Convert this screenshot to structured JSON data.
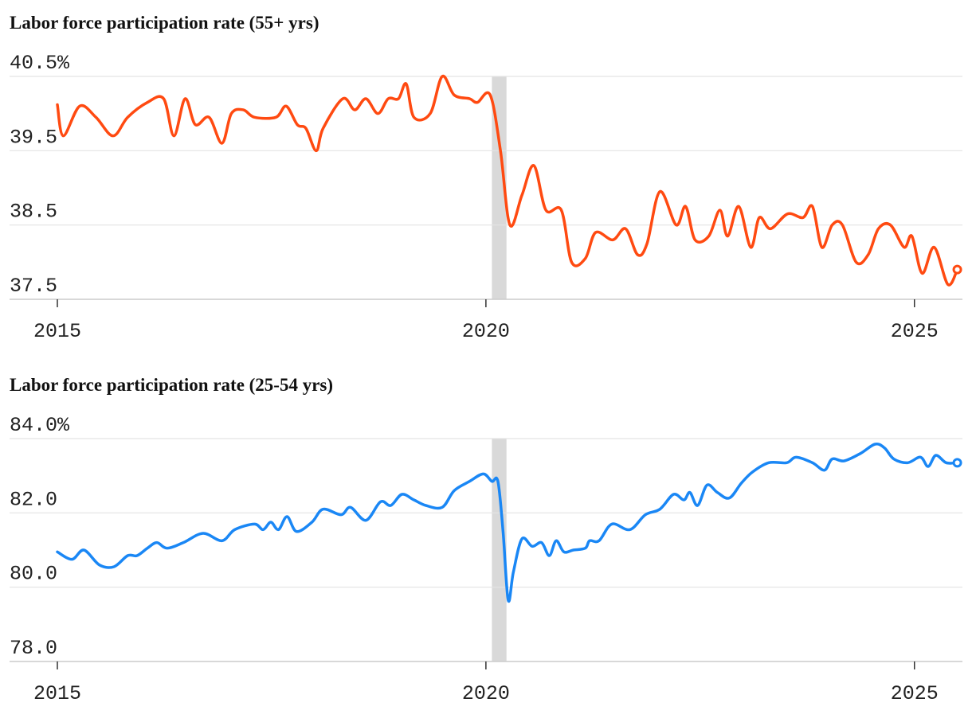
{
  "chart_data": [
    {
      "type": "line",
      "title": "Labor force participation rate (55+ yrs)",
      "color": "#ff4a11",
      "xlim": [
        2015,
        2025.56
      ],
      "xticks": [
        2015,
        2020,
        2025
      ],
      "ylim": [
        37.5,
        40.5
      ],
      "yticks": [
        37.5,
        38.5,
        39.5,
        {
          "value": 40.5,
          "label": "40.5%"
        }
      ],
      "grid": true,
      "shade": [
        2020.07,
        2020.24
      ],
      "x": [
        2015,
        2015.07,
        2015.26,
        2015.45,
        2015.65,
        2015.82,
        2016.05,
        2016.24,
        2016.36,
        2016.49,
        2016.61,
        2016.77,
        2016.92,
        2017.03,
        2017.17,
        2017.3,
        2017.55,
        2017.67,
        2017.8,
        2017.9,
        2018.02,
        2018.1,
        2018.33,
        2018.47,
        2018.6,
        2018.74,
        2018.86,
        2018.98,
        2019.07,
        2019.16,
        2019.35,
        2019.49,
        2019.63,
        2019.81,
        2019.9,
        2020.05,
        2020.17,
        2020.28,
        2020.42,
        2020.56,
        2020.7,
        2020.88,
        2021.0,
        2021.16,
        2021.28,
        2021.48,
        2021.63,
        2021.77,
        2021.88,
        2022.03,
        2022.22,
        2022.33,
        2022.44,
        2022.6,
        2022.73,
        2022.82,
        2022.95,
        2023.09,
        2023.19,
        2023.32,
        2023.52,
        2023.7,
        2023.81,
        2023.92,
        2024.04,
        2024.16,
        2024.32,
        2024.46,
        2024.58,
        2024.72,
        2024.88,
        2024.97,
        2025.09,
        2025.23,
        2025.39,
        2025.5
      ],
      "values": [
        40.12,
        39.7,
        40.1,
        39.95,
        39.7,
        39.95,
        40.15,
        40.2,
        39.7,
        40.2,
        39.85,
        39.95,
        39.6,
        40.0,
        40.05,
        39.95,
        39.95,
        40.1,
        39.85,
        39.8,
        39.5,
        39.8,
        40.2,
        40.05,
        40.2,
        40.0,
        40.2,
        40.2,
        40.4,
        39.95,
        40.0,
        40.5,
        40.25,
        40.2,
        40.15,
        40.25,
        39.5,
        38.5,
        38.9,
        39.3,
        38.7,
        38.7,
        38.0,
        38.05,
        38.4,
        38.3,
        38.45,
        38.1,
        38.25,
        38.95,
        38.5,
        38.75,
        38.3,
        38.35,
        38.7,
        38.35,
        38.75,
        38.2,
        38.6,
        38.45,
        38.65,
        38.6,
        38.75,
        38.2,
        38.5,
        38.5,
        38.0,
        38.1,
        38.45,
        38.5,
        38.2,
        38.35,
        37.85,
        38.2,
        37.7,
        37.9
      ]
    },
    {
      "type": "line",
      "title": "Labor force participation rate (25-54 yrs)",
      "color": "#1a87f5",
      "xlim": [
        2015,
        2025.56
      ],
      "xticks": [
        2015,
        2020,
        2025
      ],
      "ylim": [
        78,
        84
      ],
      "yticks": [
        {
          "value": 78,
          "label": "78.0"
        },
        {
          "value": 80,
          "label": "80.0"
        },
        {
          "value": 82,
          "label": "82.0"
        },
        {
          "value": 84,
          "label": "84.0%"
        }
      ],
      "grid": true,
      "shade": [
        2020.07,
        2020.24
      ],
      "x": [
        2015,
        2015.17,
        2015.31,
        2015.49,
        2015.66,
        2015.82,
        2015.93,
        2016.05,
        2016.16,
        2016.28,
        2016.47,
        2016.7,
        2016.92,
        2017.07,
        2017.3,
        2017.4,
        2017.49,
        2017.58,
        2017.68,
        2017.79,
        2017.97,
        2018.1,
        2018.31,
        2018.42,
        2018.6,
        2018.77,
        2018.89,
        2019.02,
        2019.16,
        2019.3,
        2019.49,
        2019.63,
        2019.81,
        2019.97,
        2020.07,
        2020.14,
        2020.2,
        2020.26,
        2020.32,
        2020.42,
        2020.54,
        2020.65,
        2020.74,
        2020.82,
        2020.91,
        2021.02,
        2021.16,
        2021.21,
        2021.32,
        2021.47,
        2021.68,
        2021.86,
        2022.03,
        2022.19,
        2022.31,
        2022.38,
        2022.47,
        2022.58,
        2022.7,
        2022.84,
        2022.98,
        2023.11,
        2023.3,
        2023.51,
        2023.62,
        2023.81,
        2023.95,
        2024.04,
        2024.18,
        2024.37,
        2024.54,
        2024.65,
        2024.76,
        2024.92,
        2025.07,
        2025.16,
        2025.25,
        2025.37,
        2025.5
      ],
      "values": [
        80.95,
        80.75,
        81.0,
        80.6,
        80.55,
        80.85,
        80.85,
        81.05,
        81.2,
        81.05,
        81.2,
        81.45,
        81.25,
        81.55,
        81.7,
        81.55,
        81.75,
        81.55,
        81.9,
        81.5,
        81.75,
        82.1,
        81.95,
        82.15,
        81.8,
        82.3,
        82.2,
        82.5,
        82.35,
        82.2,
        82.15,
        82.6,
        82.85,
        83.05,
        82.85,
        82.85,
        81.5,
        79.65,
        80.4,
        81.3,
        81.1,
        81.2,
        80.85,
        81.25,
        80.95,
        81.0,
        81.05,
        81.25,
        81.25,
        81.7,
        81.55,
        81.95,
        82.1,
        82.5,
        82.35,
        82.55,
        82.2,
        82.75,
        82.55,
        82.4,
        82.8,
        83.1,
        83.35,
        83.35,
        83.5,
        83.35,
        83.15,
        83.45,
        83.4,
        83.6,
        83.85,
        83.75,
        83.45,
        83.35,
        83.5,
        83.25,
        83.55,
        83.35,
        83.35
      ]
    }
  ]
}
